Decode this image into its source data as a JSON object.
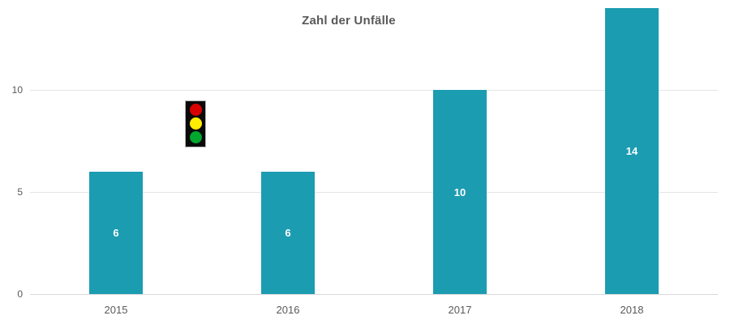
{
  "chart_data": {
    "type": "bar",
    "title": "Zahl der Unfälle",
    "categories": [
      "2015",
      "2016",
      "2017",
      "2018"
    ],
    "values": [
      6,
      6,
      10,
      14
    ],
    "yticks": [
      0,
      5,
      10
    ],
    "ylim": [
      0,
      14
    ],
    "xlabel": "",
    "ylabel": "",
    "grid": "horizontal-only",
    "legend": "none",
    "colors": {
      "bar": "#1b9cb1",
      "bar_value_label": "#ffffff",
      "title_text": "#595959",
      "axis_text": "#595959",
      "gridline": "#e4e4e4",
      "baseline": "#d9d9d9"
    }
  },
  "decorations": {
    "traffic_light_icon": {
      "name": "traffic-light",
      "colors": {
        "body": "#0a0a0a",
        "border": "#b3b3b3",
        "red": "#d90000",
        "yellow": "#ffec00",
        "green": "#00a62e"
      }
    }
  }
}
